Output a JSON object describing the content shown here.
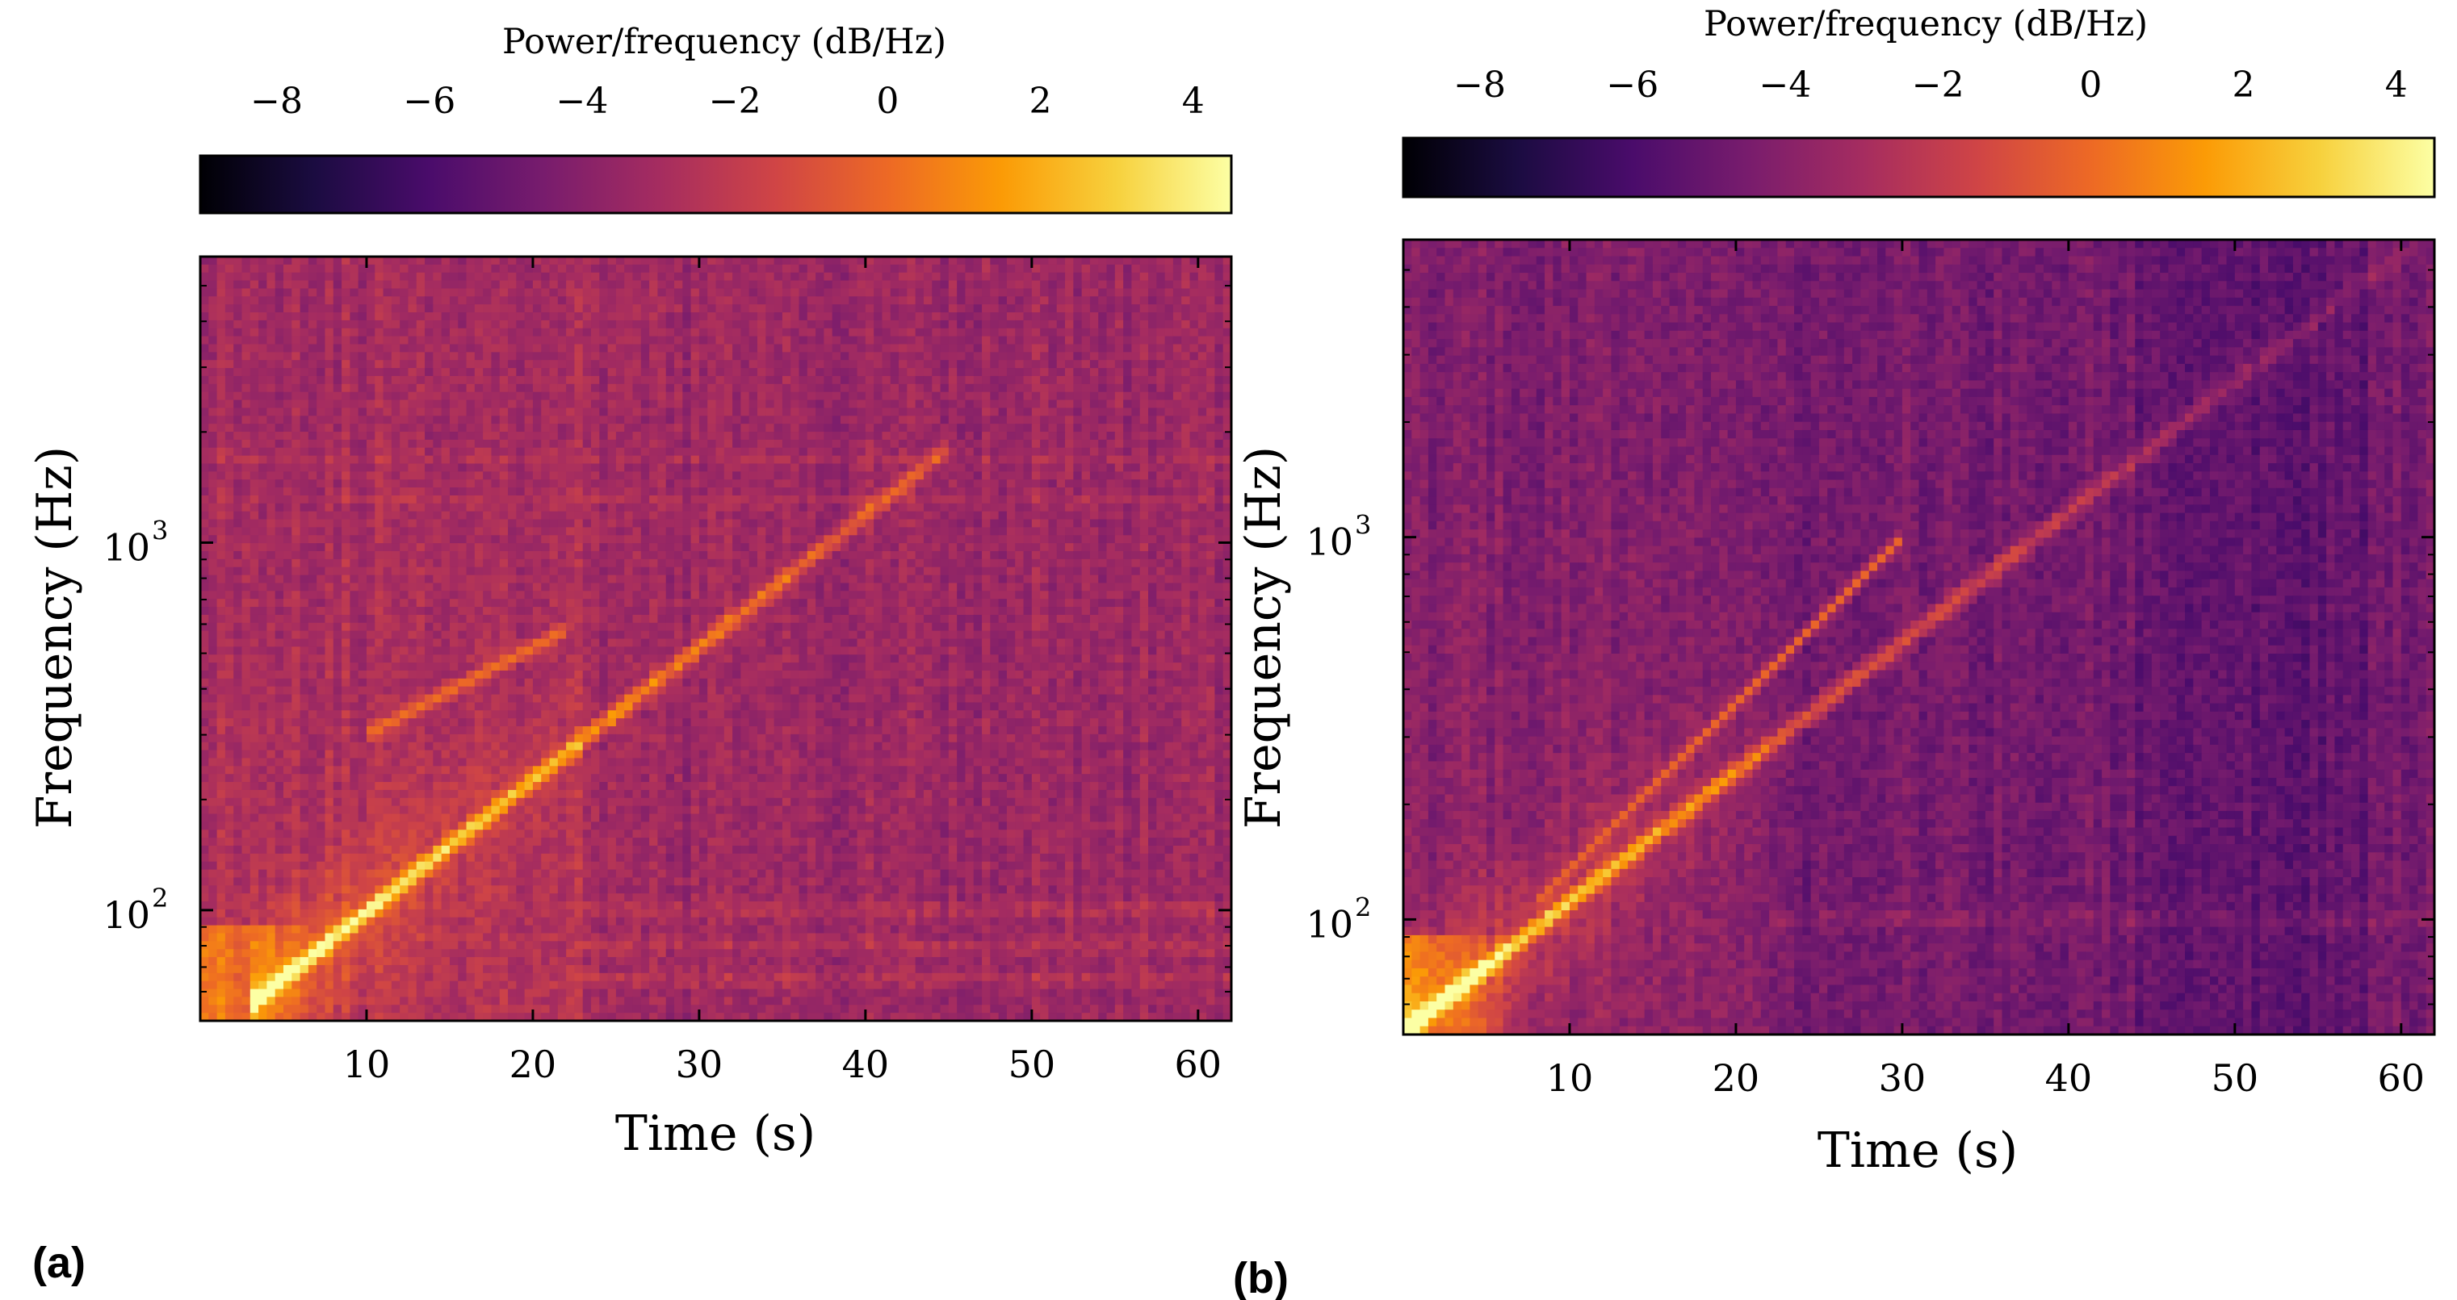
{
  "figure": {
    "panel_labels": [
      "(a)",
      "(b)"
    ]
  },
  "colormap": {
    "name": "inferno",
    "stops": [
      "#000004",
      "#1b0c41",
      "#4a0c6b",
      "#781c6d",
      "#a52c60",
      "#cf4446",
      "#ed6925",
      "#fb9b06",
      "#f7d13d",
      "#fcffa4"
    ]
  },
  "chart_data": [
    {
      "type": "heatmap",
      "panel": "(a)",
      "title": "",
      "xlabel": "Time (s)",
      "ylabel": "Frequency (Hz)",
      "xlim": [
        0,
        62
      ],
      "ylim": [
        50,
        6000
      ],
      "yscale": "log",
      "xticks": [
        10,
        20,
        30,
        40,
        50,
        60
      ],
      "yticks": [
        {
          "value": 100,
          "base": "10",
          "exp": "2"
        },
        {
          "value": 1000,
          "base": "10",
          "exp": "3"
        }
      ],
      "colorbar": {
        "label": "Power/frequency (dB/Hz)",
        "range": [
          -9,
          4.5
        ],
        "ticks": [
          -8,
          -6,
          -4,
          -2,
          0,
          2,
          4
        ],
        "tick_labels": [
          "−8",
          "−6",
          "−4",
          "−2",
          "0",
          "2",
          "4"
        ]
      },
      "sweep": {
        "t_start": 4,
        "f_start": 60,
        "t_end": 45,
        "f_end": 1800,
        "end_time": 45
      },
      "harmonic": {
        "t_start": 10,
        "f_start": 300,
        "t_end": 22,
        "f_end": 580,
        "level_db": 0.2
      },
      "broadband_change_time": 23,
      "background_db": -3.0,
      "low_freq_bands_hz": [
        65,
        80,
        100
      ],
      "high_freq_bands_hz": [
        1300,
        1700
      ]
    },
    {
      "type": "heatmap",
      "panel": "(b)",
      "title": "",
      "xlabel": "Time (s)",
      "ylabel": "Frequency (Hz)",
      "xlim": [
        0,
        62
      ],
      "ylim": [
        50,
        6000
      ],
      "yscale": "log",
      "xticks": [
        10,
        20,
        30,
        40,
        50,
        60
      ],
      "yticks": [
        {
          "value": 100,
          "base": "10",
          "exp": "2"
        },
        {
          "value": 1000,
          "base": "10",
          "exp": "3"
        }
      ],
      "colorbar": {
        "label": "Power/frequency (dB/Hz)",
        "range": [
          -9,
          4.5
        ],
        "ticks": [
          -8,
          -6,
          -4,
          -2,
          0,
          2,
          4
        ],
        "tick_labels": [
          "−8",
          "−6",
          "−4",
          "−2",
          "0",
          "2",
          "4"
        ]
      },
      "sweep": {
        "t_start": 1,
        "f_start": 55,
        "t_end": 61,
        "f_end": 6000,
        "end_time": 61
      },
      "harmonic": {
        "t_start": 8,
        "f_start": 110,
        "t_end": 30,
        "f_end": 1000,
        "level_db": -0.2
      },
      "broadband_change_time": 22,
      "background_db": -4.3,
      "low_freq_bands_hz": [
        100
      ],
      "high_freq_bands_hz": []
    }
  ]
}
